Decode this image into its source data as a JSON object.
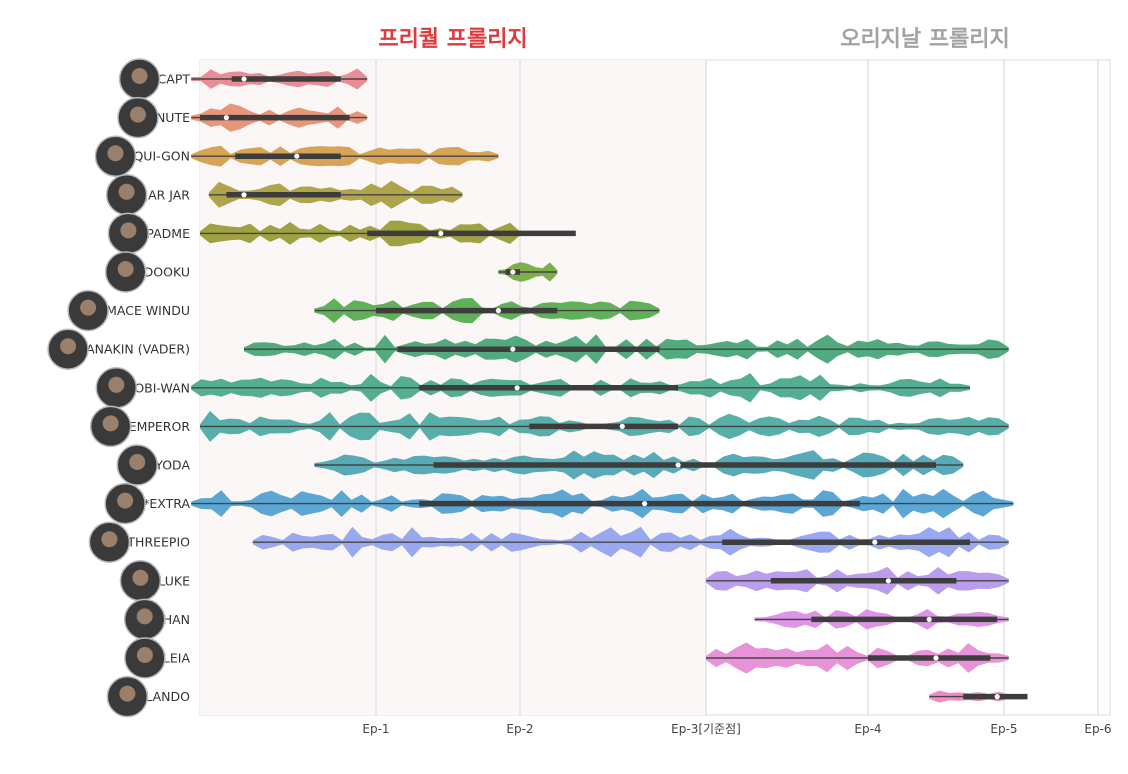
{
  "chart_data": {
    "type": "violin",
    "headers": {
      "prequel": {
        "label": "프리퀄 프롤리지",
        "color": "#e0393e"
      },
      "original": {
        "label": "오리지날 프롤리지",
        "color": "#a3a3a3"
      }
    },
    "x_ticks": [
      "Ep-1",
      "Ep-2",
      "Ep-3[기준점]",
      "Ep-4",
      "Ep-5",
      "Ep-6"
    ],
    "prequel_shade_color": "#fbf7f6",
    "characters": [
      {
        "name": "CAPT",
        "color": "#e87f8b",
        "start": -0.05,
        "end": 0.95,
        "q1": 0.18,
        "median": 0.25,
        "q3": 0.8
      },
      {
        "name": "NUTE",
        "color": "#e58b6e",
        "start": -0.05,
        "end": 0.95,
        "q1": 0.0,
        "median": 0.15,
        "q3": 0.85
      },
      {
        "name": "QUI-GON",
        "color": "#d19a42",
        "start": -0.05,
        "end": 1.85,
        "q1": 0.2,
        "median": 0.55,
        "q3": 0.8
      },
      {
        "name": "JAR JAR",
        "color": "#a69a38",
        "start": 0.05,
        "end": 1.6,
        "q1": 0.15,
        "median": 0.25,
        "q3": 0.8
      },
      {
        "name": "PADME",
        "color": "#96972e",
        "start": 0.0,
        "end": 2.0,
        "q1": 0.95,
        "median": 1.45,
        "q3": 2.3
      },
      {
        "name": "DOOKU",
        "color": "#6ea63a",
        "start": 1.85,
        "end": 2.2,
        "q1": 1.9,
        "median": 1.95,
        "q3": 2.0
      },
      {
        "name": "MACE WINDU",
        "color": "#4fa648",
        "start": 0.65,
        "end": 2.75,
        "q1": 1.0,
        "median": 1.85,
        "q3": 2.2
      },
      {
        "name": "ANAKIN (VADER)",
        "color": "#3fa270",
        "start": 0.25,
        "end": 5.05,
        "q1": 1.15,
        "median": 1.95,
        "q3": 2.75
      },
      {
        "name": "OBI-WAN",
        "color": "#40a587",
        "start": -0.05,
        "end": 4.75,
        "q1": 1.3,
        "median": 1.98,
        "q3": 2.85
      },
      {
        "name": "EMPEROR",
        "color": "#44a6a0",
        "start": 0.0,
        "end": 5.05,
        "q1": 2.05,
        "median": 2.55,
        "q3": 2.85
      },
      {
        "name": "YODA",
        "color": "#47a1b0",
        "start": 0.65,
        "end": 4.7,
        "q1": 1.4,
        "median": 2.85,
        "q3": 4.5
      },
      {
        "name": "*EXTRA",
        "color": "#4a9cd0",
        "start": -0.05,
        "end": 5.1,
        "q1": 1.3,
        "median": 2.67,
        "q3": 3.95
      },
      {
        "name": "THREEPIO",
        "color": "#8f9eef",
        "start": 0.3,
        "end": 5.05,
        "q1": 3.1,
        "median": 4.05,
        "q3": 4.75
      },
      {
        "name": "LUKE",
        "color": "#b591ea",
        "start": 3.0,
        "end": 5.05,
        "q1": 3.4,
        "median": 4.15,
        "q3": 4.65
      },
      {
        "name": "HAN",
        "color": "#d98ae3",
        "start": 3.3,
        "end": 5.05,
        "q1": 3.65,
        "median": 4.45,
        "q3": 4.95
      },
      {
        "name": "LEIA",
        "color": "#e586d6",
        "start": 3.0,
        "end": 5.05,
        "q1": 4.0,
        "median": 4.5,
        "q3": 4.9
      },
      {
        "name": "LANDO",
        "color": "#f07eb8",
        "start": 4.45,
        "end": 5.05,
        "q1": 4.7,
        "median": 4.95,
        "q3": 5.25
      }
    ]
  }
}
